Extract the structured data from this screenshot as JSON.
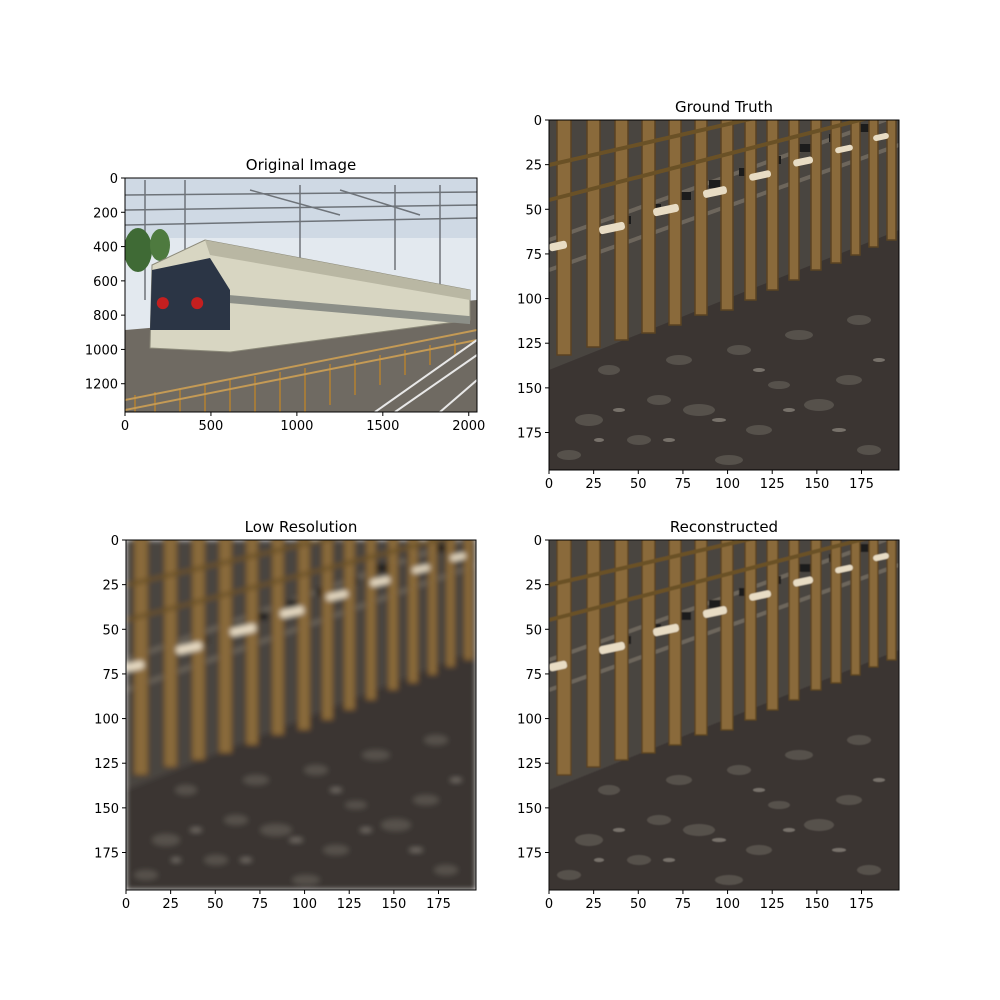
{
  "panels": [
    {
      "id": "original",
      "title": "Original Image",
      "x_ticks": [
        "0",
        "500",
        "1000",
        "1500",
        "2000"
      ],
      "y_ticks": [
        "0",
        "200",
        "400",
        "600",
        "800",
        "1000",
        "1200"
      ],
      "x_range": [
        0,
        2048
      ],
      "y_range": [
        0,
        1365
      ],
      "markers": [
        {
          "x": 220,
          "y": 730
        },
        {
          "x": 420,
          "y": 730
        }
      ],
      "marker_color": "#c41f1f"
    },
    {
      "id": "ground-truth",
      "title": "Ground Truth",
      "x_ticks": [
        "0",
        "25",
        "50",
        "75",
        "100",
        "125",
        "150",
        "175"
      ],
      "y_ticks": [
        "0",
        "25",
        "50",
        "75",
        "100",
        "125",
        "150",
        "175"
      ],
      "x_range": [
        0,
        196
      ],
      "y_range": [
        0,
        196
      ]
    },
    {
      "id": "low-resolution",
      "title": "Low Resolution",
      "x_ticks": [
        "0",
        "25",
        "50",
        "75",
        "100",
        "125",
        "150",
        "175"
      ],
      "y_ticks": [
        "0",
        "25",
        "50",
        "75",
        "100",
        "125",
        "150",
        "175"
      ],
      "x_range": [
        0,
        196
      ],
      "y_range": [
        0,
        196
      ]
    },
    {
      "id": "reconstructed",
      "title": "Reconstructed",
      "x_ticks": [
        "0",
        "25",
        "50",
        "75",
        "100",
        "125",
        "150",
        "175"
      ],
      "y_ticks": [
        "0",
        "25",
        "50",
        "75",
        "100",
        "125",
        "150",
        "175"
      ],
      "x_range": [
        0,
        196
      ],
      "y_range": [
        0,
        196
      ]
    }
  ],
  "colors": {
    "sky": "#dfe6ee",
    "train_body": "#d8d6c2",
    "train_window": "#2b3545",
    "gravel_dark": "#3b3835",
    "gravel_mid": "#56514b",
    "gravel_light": "#77716a",
    "fence_post": "#8a6a3a",
    "fence_post_dark": "#5a4322",
    "fence_cap": "#e8dcc4"
  }
}
